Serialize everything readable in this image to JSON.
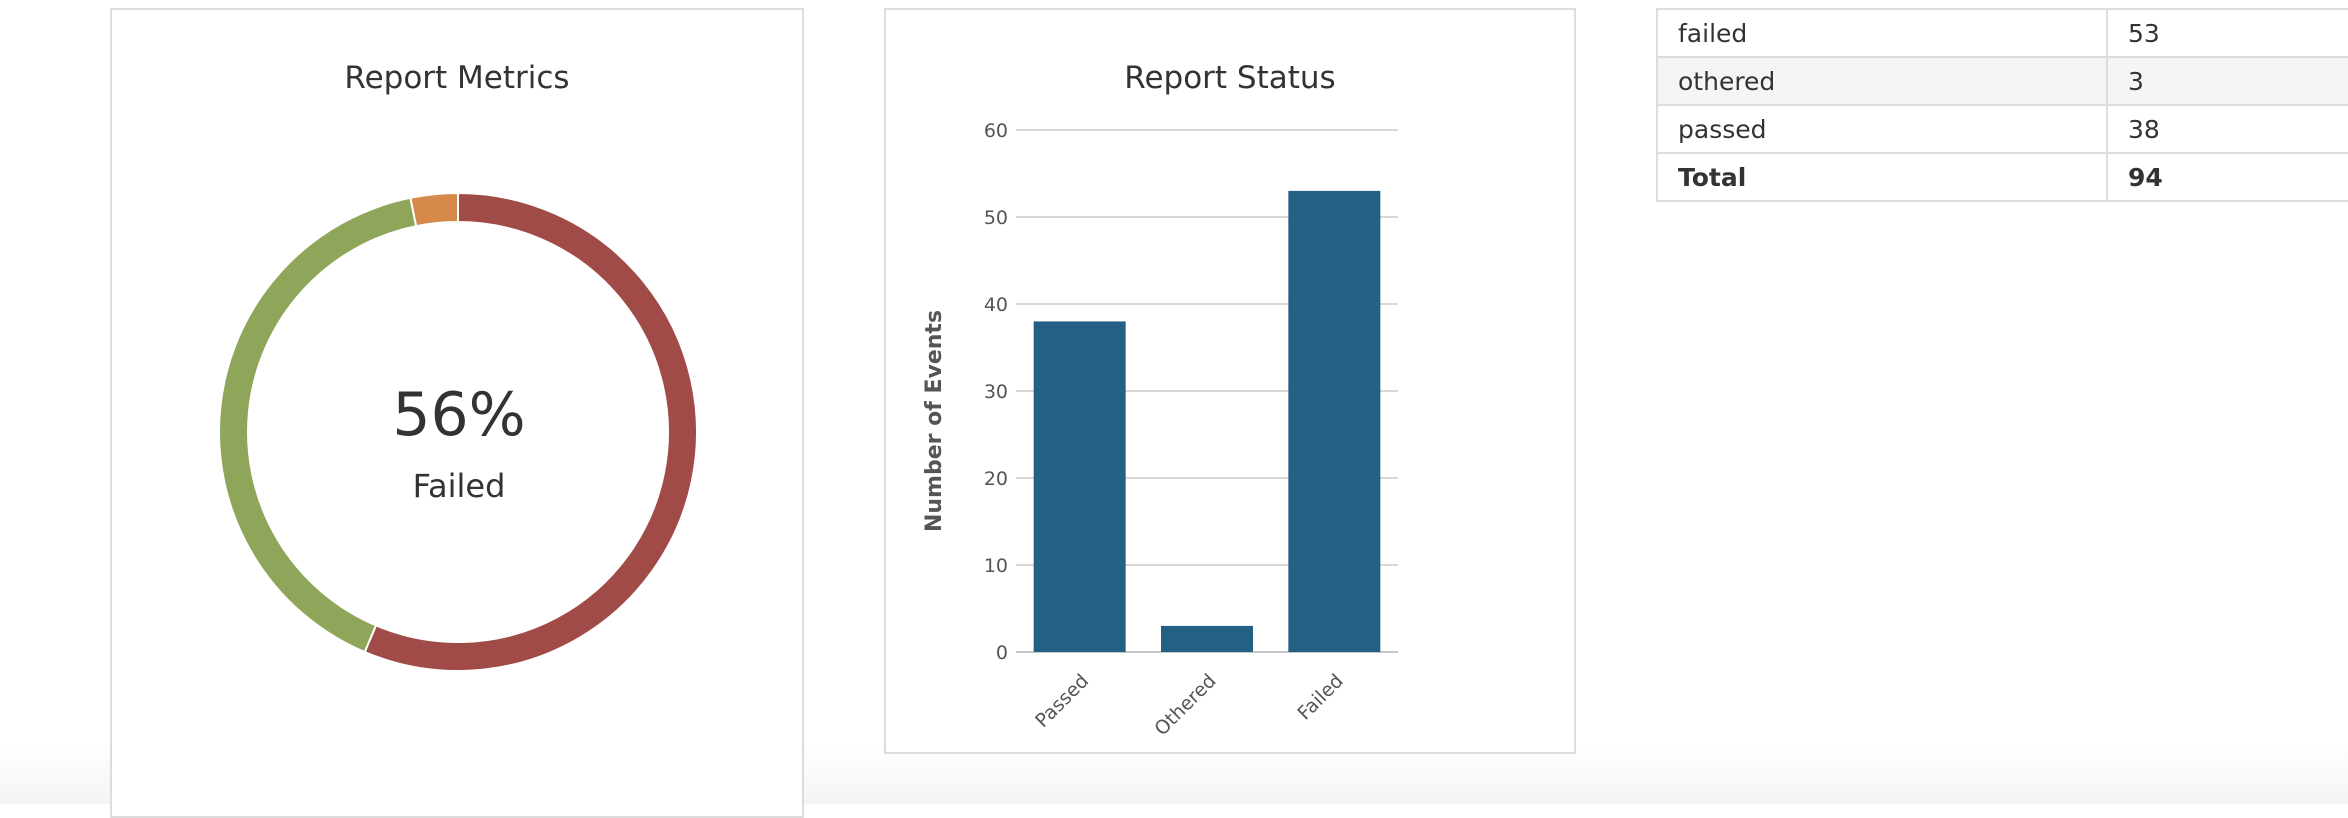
{
  "metrics_panel": {
    "title": "Report Metrics",
    "center_value": "56%",
    "center_label": "Failed"
  },
  "status_panel": {
    "title": "Report Status"
  },
  "table": {
    "rows": [
      {
        "name": "failed",
        "value": "53"
      },
      {
        "name": "othered",
        "value": "3"
      },
      {
        "name": "passed",
        "value": "38"
      }
    ],
    "total": {
      "name": "Total",
      "value": "94"
    }
  },
  "chart_data": [
    {
      "type": "pie",
      "title": "Report Metrics",
      "style": "donut",
      "categories": [
        "Failed",
        "Passed",
        "Othered"
      ],
      "values": [
        53,
        38,
        3
      ],
      "colors": [
        "#a04b47",
        "#8fa65a",
        "#d58a4c"
      ],
      "center_text": "56%",
      "center_label": "Failed"
    },
    {
      "type": "bar",
      "title": "Report Status",
      "categories": [
        "Passed",
        "Othered",
        "Failed"
      ],
      "values": [
        38,
        3,
        53
      ],
      "color": "#236083",
      "xlabel": "",
      "ylabel": "Number of Events",
      "ylim": [
        0,
        60
      ],
      "yticks": [
        0,
        10,
        20,
        30,
        40,
        50,
        60
      ],
      "grid": true
    }
  ]
}
